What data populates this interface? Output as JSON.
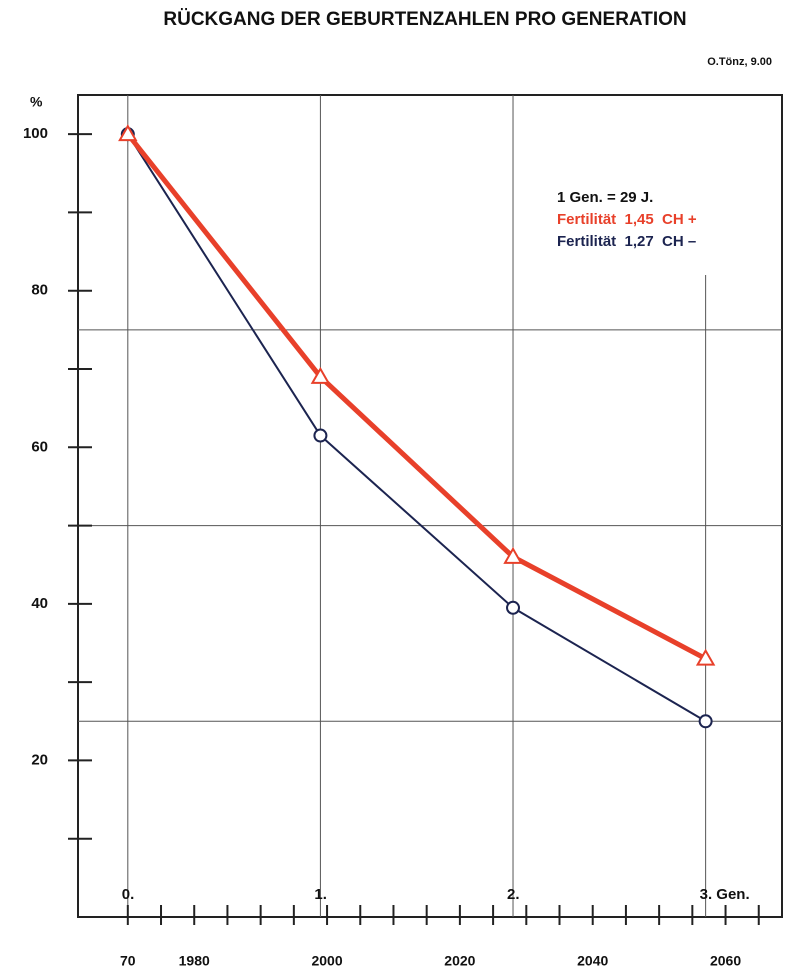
{
  "chart_data": {
    "type": "line",
    "title": "RÜCKGANG DER GEBURTENZAHLEN PRO GENERATION",
    "subtitle": "O.Tönz, 9.00",
    "y_label": "%",
    "annotation": "1 Gen. = 29 J.",
    "x": [
      1970,
      1999,
      2028,
      2057
    ],
    "x_point_labels": [
      "0.",
      "1.",
      "2.",
      "3. Gen."
    ],
    "series": [
      {
        "name": "Fertilität  1,45  CH +",
        "color": "#e8402a",
        "marker": "triangle",
        "values": [
          100,
          69,
          46,
          33
        ]
      },
      {
        "name": "Fertilität  1,27  CH –",
        "color": "#1c2450",
        "marker": "circle",
        "values": [
          100,
          61.5,
          39.5,
          25
        ]
      }
    ],
    "xlim": [
      1962.5,
      2068.5
    ],
    "xticks": [
      {
        "value": 1970,
        "label": "70"
      },
      1980,
      2000,
      2020,
      2040,
      2060
    ],
    "xminor_ticks": [
      1975,
      1985,
      1990,
      1995,
      2005,
      2010,
      2015,
      2025,
      2030,
      2035,
      2045,
      2050,
      2055,
      2065
    ],
    "ylim": [
      0,
      105
    ],
    "yticks": [
      20,
      40,
      60,
      80,
      100
    ],
    "yminor_ticks": [
      10,
      30,
      50,
      70,
      90
    ],
    "ygrid": [
      25,
      50,
      75
    ],
    "grid": true,
    "legend": "top-right"
  }
}
